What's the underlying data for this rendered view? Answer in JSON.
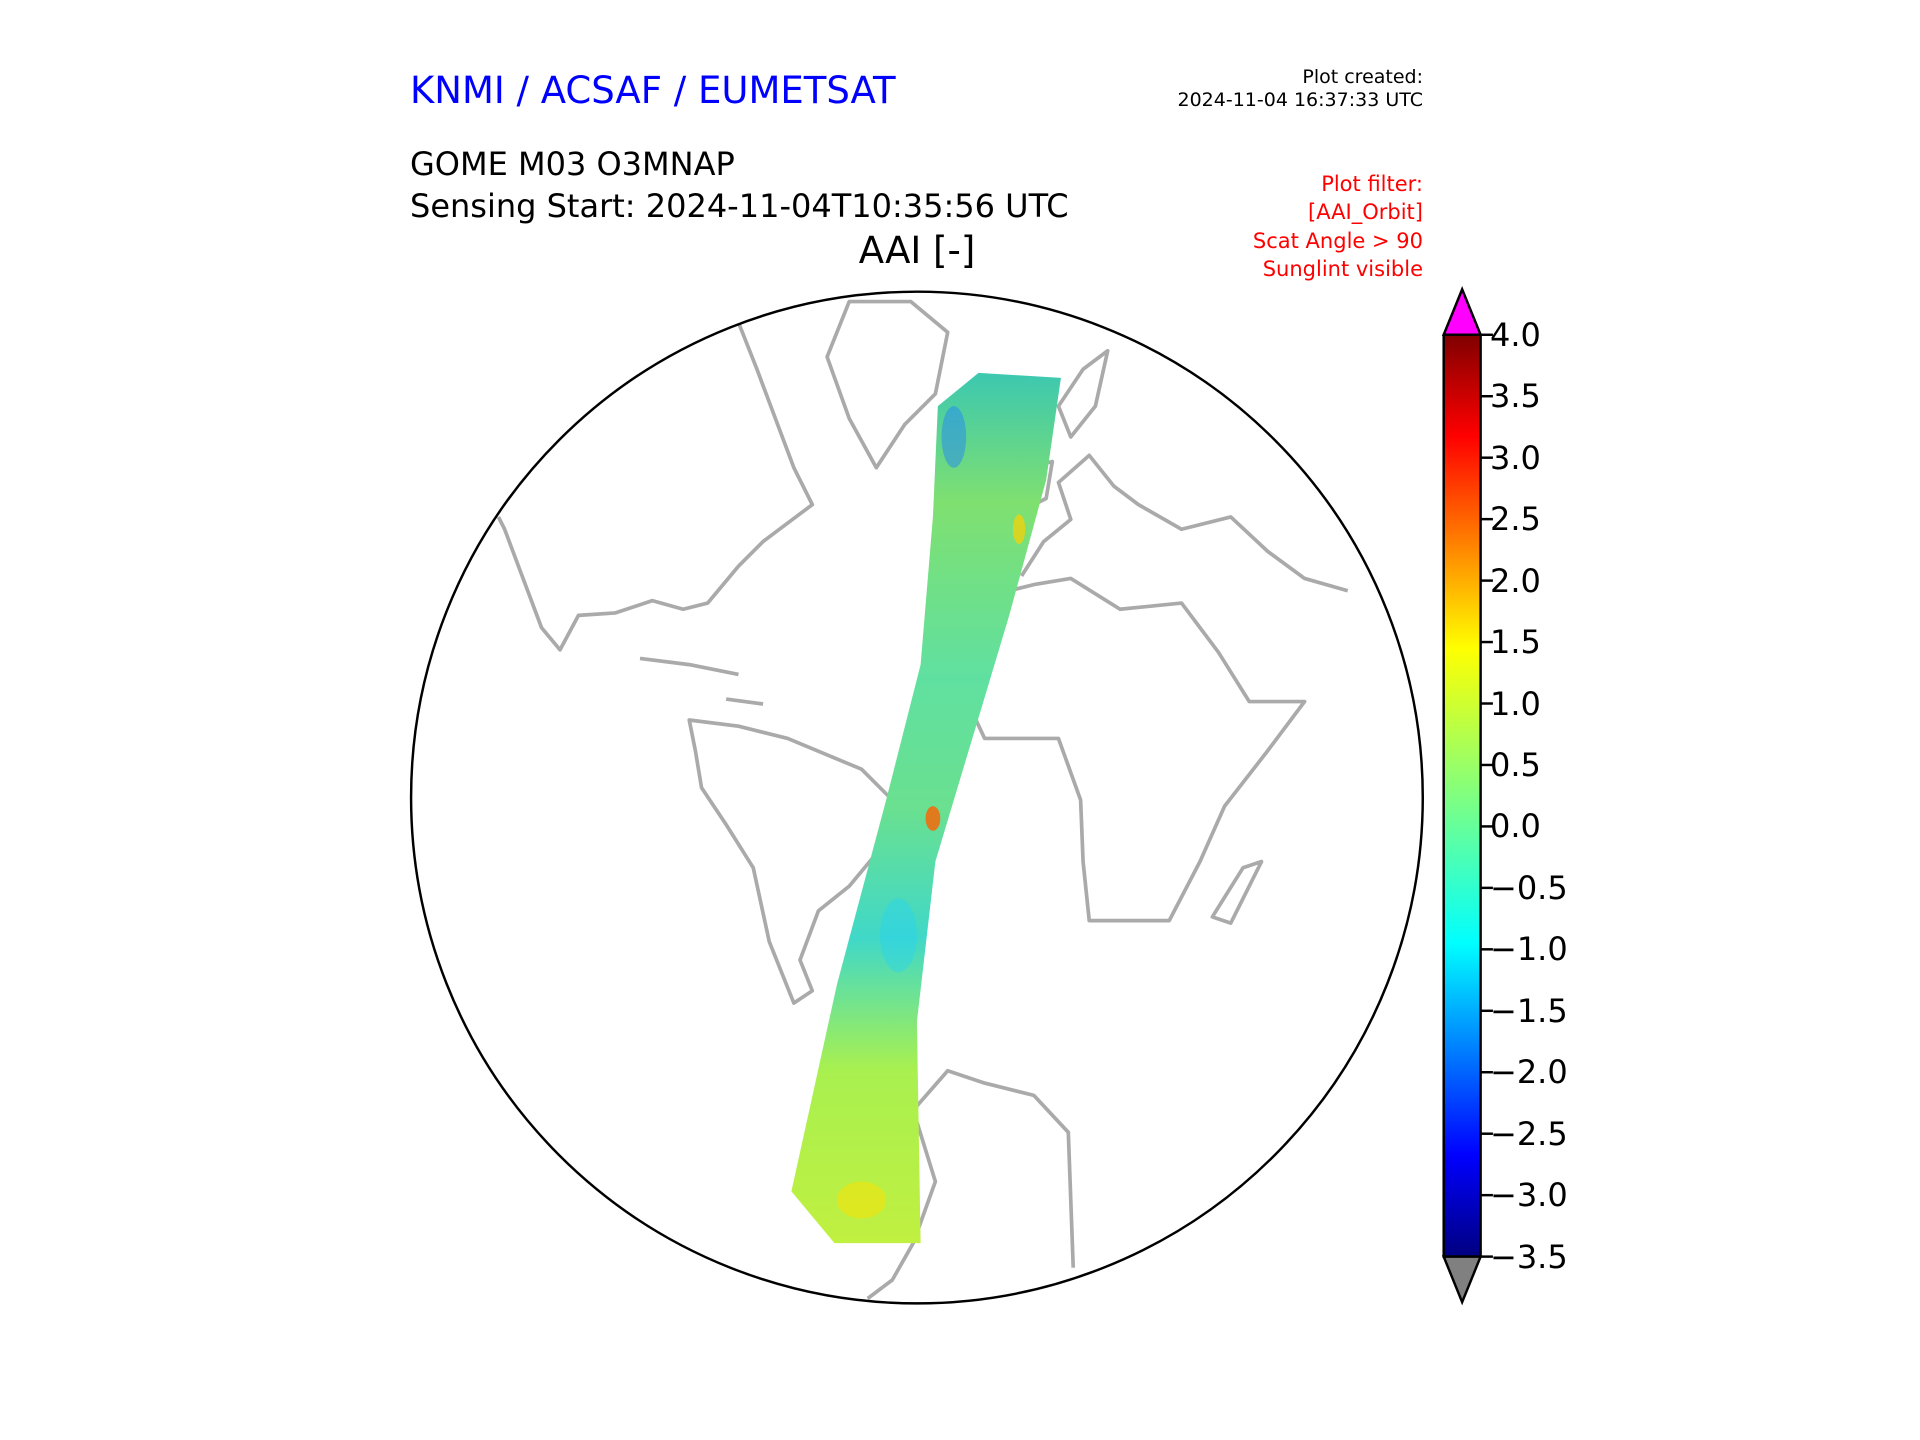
{
  "header": {
    "organization": "KNMI / ACSAF / EUMETSAT",
    "organization_color": "#0000ff",
    "plot_created_label": "Plot created:",
    "plot_created_time": "2024-11-04 16:37:33 UTC",
    "product": "GOME M03 O3MNAP",
    "sensing_start": "Sensing Start: 2024-11-04T10:35:56 UTC",
    "variable_title": "AAI [-]",
    "filter_lines": [
      "Plot filter:",
      "[AAI_Orbit]",
      "Scat Angle > 90",
      "Sunglint visible"
    ],
    "filter_color": "#ff0000"
  },
  "chart_data": {
    "type": "heatmap",
    "title": "AAI [-]",
    "projection": "orthographic",
    "colormap": "jet",
    "colorbar": {
      "vmin": -3.5,
      "vmax": 4.0,
      "ticks": [
        "4.0",
        "3.5",
        "3.0",
        "2.5",
        "2.0",
        "1.5",
        "1.0",
        "0.5",
        "0.0",
        "−0.5",
        "−1.0",
        "−1.5",
        "−2.0",
        "−2.5",
        "−3.0",
        "−3.5"
      ],
      "tick_values": [
        4.0,
        3.5,
        3.0,
        2.5,
        2.0,
        1.5,
        1.0,
        0.5,
        0.0,
        -0.5,
        -1.0,
        -1.5,
        -2.0,
        -2.5,
        -3.0,
        -3.5
      ],
      "extend_max_color": "#ff00ff",
      "extend_min_color": "#808080"
    },
    "swath_typical_range": [
      -1.0,
      1.5
    ],
    "coastline_color": "#aaaaaa"
  }
}
